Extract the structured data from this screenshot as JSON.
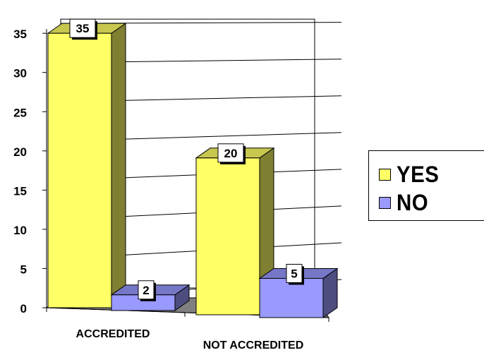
{
  "chart_data": {
    "type": "bar",
    "title": "",
    "xlabel": "",
    "ylabel": "",
    "categories": [
      "ACCREDITED",
      "NOT ACCREDITED"
    ],
    "series": [
      {
        "name": "YES",
        "values": [
          35,
          20
        ],
        "color": "#ffff66"
      },
      {
        "name": "NO",
        "values": [
          2,
          5
        ],
        "color": "#9999ff"
      }
    ],
    "ylim": [
      0,
      35
    ],
    "yticks": [
      "0",
      "5",
      "10",
      "15",
      "20",
      "25",
      "30",
      "35"
    ],
    "data_labels": [
      "35",
      "20",
      "2",
      "5"
    ],
    "grid": true,
    "three_d": true,
    "legend_position": "right"
  }
}
